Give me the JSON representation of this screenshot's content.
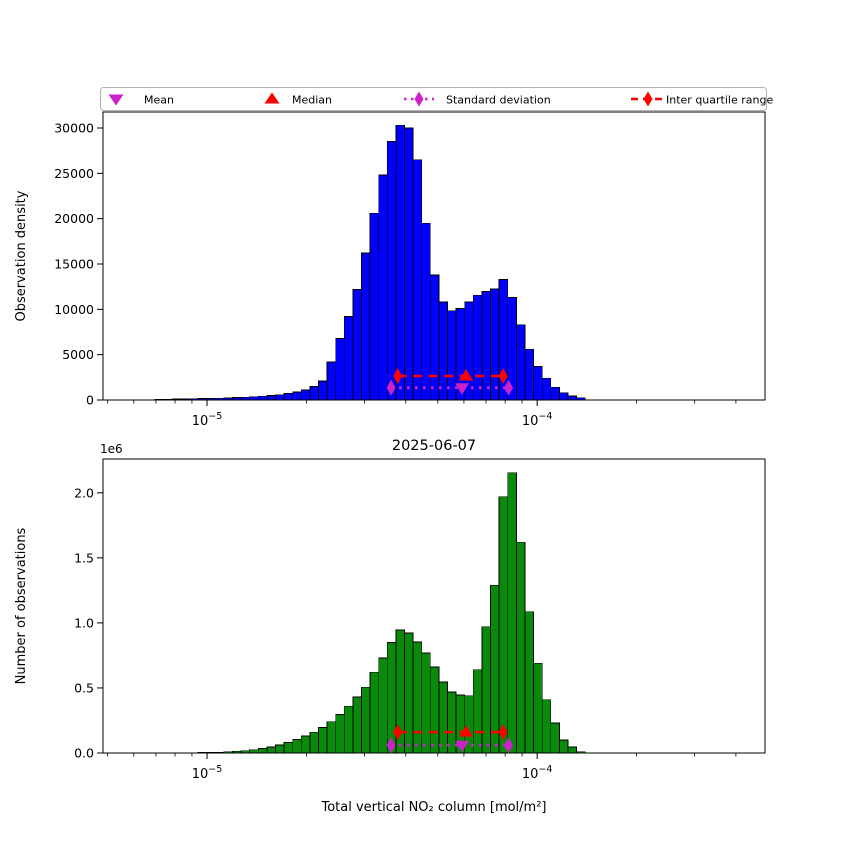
{
  "figure": {
    "background": "#ffffff"
  },
  "legend": {
    "border_color": "#b3b3b3",
    "items": [
      {
        "label": "Mean",
        "marker": "triangle-down-icon",
        "color": "#cc22cc"
      },
      {
        "label": "Median",
        "marker": "triangle-up-icon",
        "color": "#ff0000"
      },
      {
        "label": "Standard deviation",
        "marker": "diamond-dotted-line-icon",
        "color": "#cc22cc"
      },
      {
        "label": "Inter quartile range",
        "marker": "diamond-dashed-line-icon",
        "color": "#ff0000"
      }
    ]
  },
  "chart_data": [
    {
      "type": "bar",
      "subtype": "histogram",
      "position": "top",
      "ylabel": "Observation density",
      "x_scale": "log",
      "x_range": [
        4.84e-06,
        0.00049
      ],
      "y_range": [
        0,
        31765
      ],
      "grid": false,
      "bar_color": "#0000ff",
      "bar_edge_color": "#000000",
      "y_ticks": [
        {
          "value": 0,
          "label": "0"
        },
        {
          "value": 5000,
          "label": "5000"
        },
        {
          "value": 10000,
          "label": "10000"
        },
        {
          "value": 15000,
          "label": "15000"
        },
        {
          "value": 20000,
          "label": "20000"
        },
        {
          "value": 25000,
          "label": "25000"
        },
        {
          "value": 30000,
          "label": "30000"
        }
      ],
      "x_major_ticks": [
        {
          "value": 1e-05,
          "label_base": "10",
          "label_exp": "−5"
        },
        {
          "value": 0.0001,
          "label_base": "10",
          "label_exp": "−4"
        }
      ],
      "bins": {
        "log10_start": -5.1576,
        "log10_end": -3.8545,
        "n": 50
      },
      "values": [
        60,
        80,
        95,
        110,
        130,
        150,
        175,
        200,
        235,
        270,
        310,
        360,
        420,
        490,
        580,
        700,
        870,
        1100,
        1500,
        2100,
        4200,
        6800,
        9200,
        12200,
        16200,
        20600,
        24800,
        28500,
        30300,
        30000,
        26500,
        19500,
        13800,
        10800,
        9850,
        10100,
        10800,
        11550,
        11950,
        12250,
        13300,
        11300,
        8300,
        5600,
        3700,
        2400,
        1400,
        800,
        450,
        250
      ],
      "markers": {
        "mean": 5.92e-05,
        "median": 6.09e-05,
        "std_low": 3.61e-05,
        "std_high": 8.19e-05,
        "q1": 3.78e-05,
        "q3": 7.89e-05,
        "iqr_line_y": 2650,
        "std_line_y": 1350,
        "mean_color": "#cc22cc",
        "median_color": "#ff0000"
      }
    },
    {
      "type": "bar",
      "subtype": "histogram",
      "position": "bottom",
      "title": "2025-06-07",
      "xlabel": "Total vertical NO₂ column [mol/m²]",
      "ylabel": "Number of observations",
      "offset_label": "1e6",
      "x_scale": "log",
      "x_range": [
        4.84e-06,
        0.00049
      ],
      "y_range": [
        0,
        2260000
      ],
      "grid": false,
      "bar_color": "#0a8a0a",
      "bar_edge_color": "#000000",
      "y_ticks": [
        {
          "value": 0,
          "label": "0.0"
        },
        {
          "value": 500000,
          "label": "0.5"
        },
        {
          "value": 1000000,
          "label": "1.0"
        },
        {
          "value": 1500000,
          "label": "1.5"
        },
        {
          "value": 2000000,
          "label": "2.0"
        }
      ],
      "x_major_ticks": [
        {
          "value": 1e-05,
          "label_base": "10",
          "label_exp": "−5"
        },
        {
          "value": 0.0001,
          "label_base": "10",
          "label_exp": "−4"
        }
      ],
      "bins": {
        "log10_start": -5.1576,
        "log10_end": -3.8545,
        "n": 50
      },
      "values": [
        0,
        0,
        0,
        1000,
        2000,
        3000,
        4000,
        6000,
        9000,
        13000,
        18000,
        25000,
        34000,
        46000,
        61000,
        80000,
        103000,
        130000,
        160000,
        195000,
        240000,
        295000,
        360000,
        430000,
        505000,
        620000,
        730000,
        850000,
        946000,
        923000,
        854000,
        769000,
        662000,
        546000,
        470000,
        445000,
        440000,
        640000,
        970000,
        1290000,
        1970000,
        2154000,
        1620000,
        1085000,
        690000,
        410000,
        230000,
        100000,
        46000,
        10000
      ],
      "markers": {
        "mean": 5.92e-05,
        "median": 6.09e-05,
        "std_low": 3.61e-05,
        "std_high": 8.19e-05,
        "q1": 3.78e-05,
        "q3": 7.89e-05,
        "iqr_line_y": 160000,
        "std_line_y": 60000,
        "mean_color": "#cc22cc",
        "median_color": "#ff0000"
      }
    }
  ]
}
